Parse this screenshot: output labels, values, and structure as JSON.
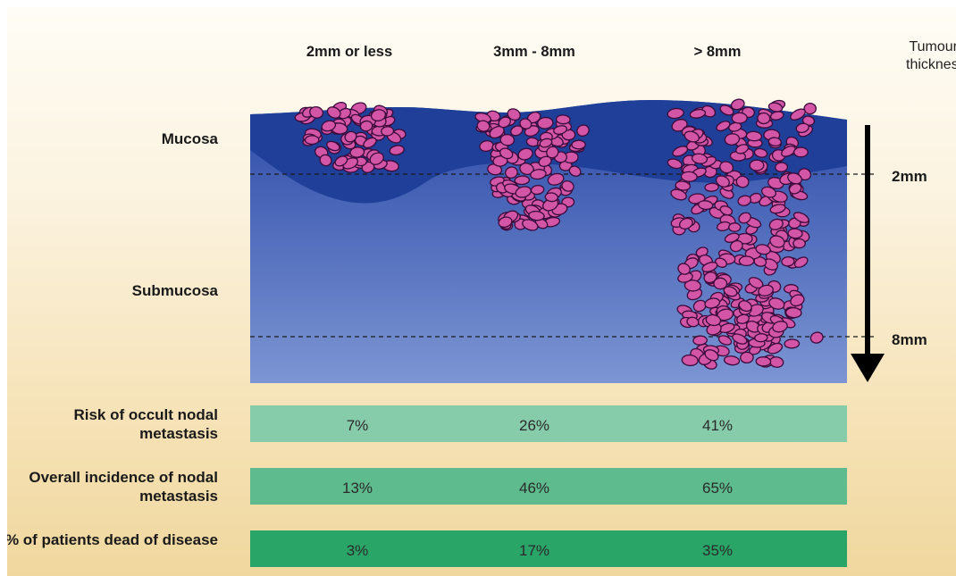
{
  "columns": [
    "2mm or less",
    "3mm - 8mm",
    "> 8mm"
  ],
  "thickness_label": "Tumour thickness",
  "layers": {
    "mucosa": "Mucosa",
    "submucosa": "Submucosa"
  },
  "depth_marks": [
    "2mm",
    "8mm"
  ],
  "colors": {
    "tissue_dark": "#1f3f98",
    "tissue_light": "#7c95d3",
    "cell_fill": "#d255a6",
    "cell_stroke": "#3a0a3a",
    "bar_1": "#86ccaa",
    "bar_2": "#5ebb8d",
    "bar_3": "#2aa568"
  },
  "rows": [
    {
      "label": "Risk of occult nodal metastasis",
      "values": [
        "7%",
        "26%",
        "41%"
      ]
    },
    {
      "label": "Overall incidence of nodal metastasis",
      "values": [
        "13%",
        "46%",
        "65%"
      ]
    },
    {
      "label": "% of patients dead of disease",
      "values": [
        "3%",
        "17%",
        "35%"
      ]
    }
  ]
}
